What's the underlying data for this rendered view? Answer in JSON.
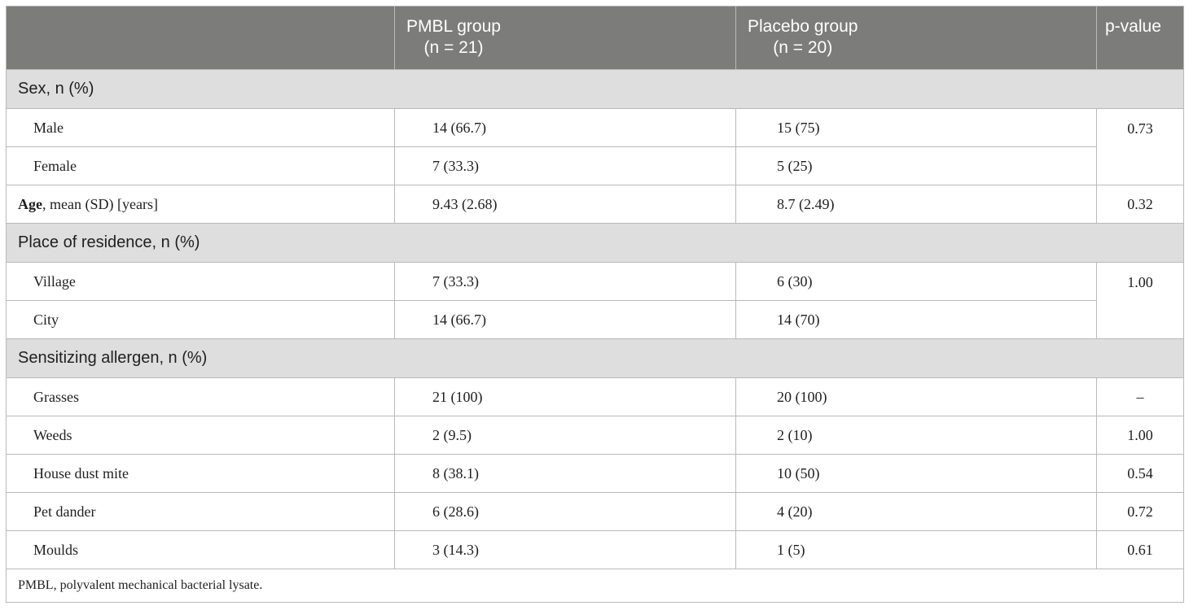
{
  "header": {
    "col1": "",
    "col2_line1": "PMBL group",
    "col2_line2": "(n = 21)",
    "col3_line1": "Placebo group",
    "col3_line2": "(n = 20)",
    "col4": "p-value"
  },
  "sections": {
    "sex": "Sex, n (%)",
    "residence": "Place of residence, n (%)",
    "allergen": "Sensitizing allergen, n (%)"
  },
  "rows": {
    "male": {
      "label": "Male",
      "pmbl": "14 (66.7)",
      "placebo": "15 (75)"
    },
    "female": {
      "label": "Female",
      "pmbl": "7 (33.3)",
      "placebo": "5 (25)"
    },
    "sex_p": "0.73",
    "age": {
      "label_bold": "Age",
      "label_rest": ", mean (SD) [years]",
      "pmbl": "9.43 (2.68)",
      "placebo": "8.7 (2.49)",
      "p": "0.32"
    },
    "village": {
      "label": "Village",
      "pmbl": "7 (33.3)",
      "placebo": "6 (30)"
    },
    "city": {
      "label": "City",
      "pmbl": "14 (66.7)",
      "placebo": "14 (70)"
    },
    "residence_p": "1.00",
    "grasses": {
      "label": "Grasses",
      "pmbl": "21 (100)",
      "placebo": "20 (100)",
      "p": "–"
    },
    "weeds": {
      "label": "Weeds",
      "pmbl": "2 (9.5)",
      "placebo": "2 (10)",
      "p": "1.00"
    },
    "dust": {
      "label": "House dust mite",
      "pmbl": "8 (38.1)",
      "placebo": "10 (50)",
      "p": "0.54"
    },
    "pet": {
      "label": "Pet dander",
      "pmbl": "6 (28.6)",
      "placebo": "4 (20)",
      "p": "0.72"
    },
    "moulds": {
      "label": "Moulds",
      "pmbl": "3 (14.3)",
      "placebo": "1 (5)",
      "p": "0.61"
    }
  },
  "footnote": "PMBL, polyvalent mechanical bacterial lysate."
}
